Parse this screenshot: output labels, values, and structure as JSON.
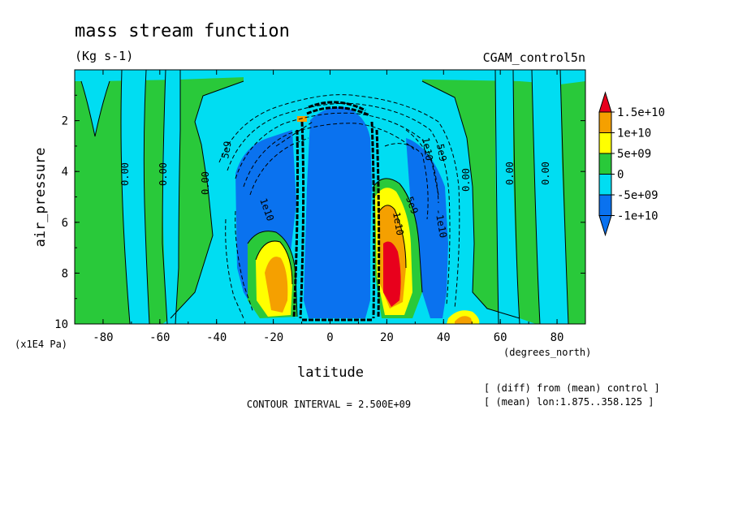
{
  "colors": {
    "red": "#e8001c",
    "orange": "#f5a000",
    "yellow": "#ffff00",
    "green": "#29c93a",
    "cyan": "#00ddf2",
    "blue": "#0a72ef",
    "line": "#000000"
  },
  "chart_data": {
    "type": "heatmap",
    "title": "mass stream function",
    "units": "(Kg s-1)",
    "dataset": "CGAM_control5n",
    "xlabel": "latitude",
    "ylabel": "air_pressure",
    "x_units": "(degrees_north)",
    "y_units": "(x1E4 Pa)",
    "xlim": [
      -90,
      90
    ],
    "ylim": [
      10,
      0
    ],
    "x_ticks": [
      "-80",
      "-60",
      "-40",
      "-20",
      "0",
      "20",
      "40",
      "60",
      "80"
    ],
    "y_ticks": [
      "2",
      "4",
      "6",
      "8",
      "10"
    ],
    "contour_interval": "CONTOUR INTERVAL = 2.500E+09",
    "notes": [
      "[ (diff) from (mean) control ]",
      "[ (mean) lon:1.875..358.125 ]"
    ],
    "legend": {
      "placement": "right",
      "levels": [
        {
          "label": "1.5e+10",
          "color": "red"
        },
        {
          "label": "1e+10",
          "color": "orange"
        },
        {
          "label": "5e+09",
          "color": "yellow"
        },
        {
          "label": "0",
          "color": "green"
        },
        {
          "label": "-5e+09",
          "color": "cyan"
        },
        {
          "label": "-1e+10",
          "color": "blue"
        }
      ]
    },
    "contour_labels": [
      "0.00",
      "0.00",
      "0.00",
      "0.00",
      "0.00",
      "0.00",
      "5e9",
      "5e9",
      "-1e10",
      "1e10",
      "5e9",
      "1e10",
      "1e10"
    ],
    "features": [
      {
        "name": "southern-cell",
        "lat_center": -20,
        "p_center": 8.5,
        "level": "1e+10"
      },
      {
        "name": "northern-cell",
        "lat_center": 21,
        "p_center": 7.5,
        "level": "1.5e+10"
      },
      {
        "name": "equatorial-core",
        "lat_min": -10,
        "lat_max": 15,
        "level": "-1e+10"
      }
    ]
  }
}
